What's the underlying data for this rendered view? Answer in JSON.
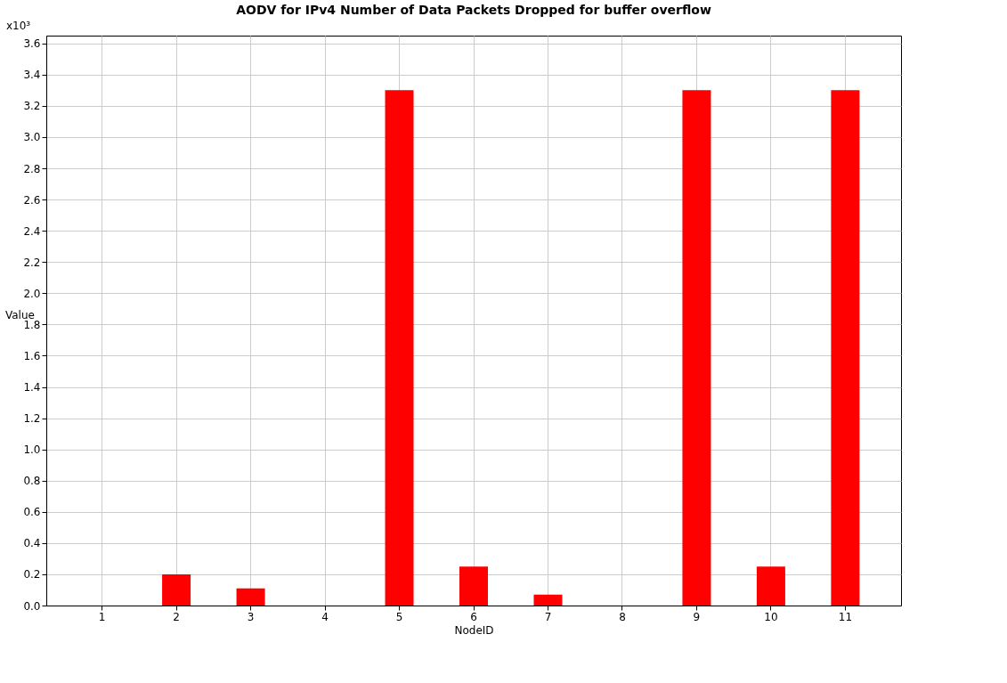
{
  "chart_data": {
    "type": "bar",
    "title": "AODV for IPv4   Number of Data Packets Dropped for buffer overflow",
    "xlabel": "NodeID",
    "ylabel": "Value",
    "categories": [
      "1",
      "2",
      "3",
      "4",
      "5",
      "6",
      "7",
      "8",
      "9",
      "10",
      "11"
    ],
    "values": [
      0,
      0.2,
      0.11,
      0,
      3.3,
      0.25,
      0.07,
      0,
      3.3,
      0.25,
      3.3
    ],
    "color": "#ff0000",
    "ylim": [
      0,
      3.65
    ],
    "yticks": [
      {
        "value": 0,
        "label": "0.0"
      },
      0.2,
      0.4,
      0.6,
      0.8,
      {
        "value": 1,
        "label": "1.0"
      },
      1.2,
      1.4,
      1.6,
      1.8,
      {
        "value": 2,
        "label": "2.0"
      },
      2.2,
      2.4,
      2.6,
      2.8,
      {
        "value": 3,
        "label": "3.0"
      },
      3.2,
      3.4,
      3.6
    ],
    "annotations": [
      "x10³"
    ],
    "grid": true
  }
}
